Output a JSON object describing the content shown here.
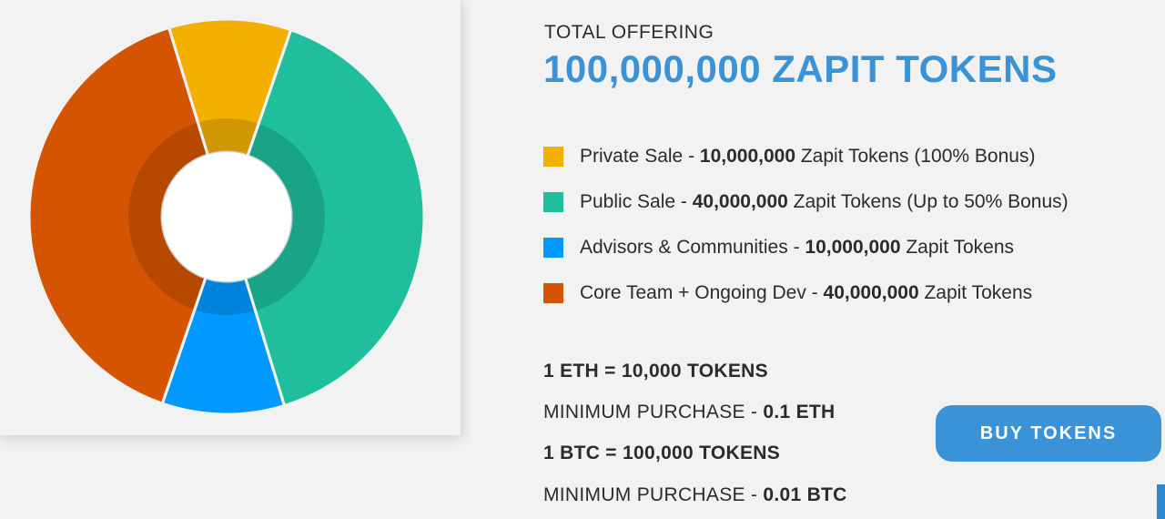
{
  "offering": {
    "label": "TOTAL OFFERING",
    "value": "100,000,000 ZAPIT TOKENS"
  },
  "legend": [
    {
      "name": "Private Sale",
      "sep": " - ",
      "amount": "10,000,000",
      "suffix": " Zapit Tokens (100% Bonus)",
      "color": "#f4b000"
    },
    {
      "name": "Public Sale",
      "sep": " - ",
      "amount": "40,000,000",
      "suffix": " Zapit Tokens (Up to 50% Bonus)",
      "color": "#1fbf9e"
    },
    {
      "name": "Advisors & Communities",
      "sep": " - ",
      "amount": "10,000,000",
      "suffix": " Zapit Tokens",
      "color": "#0099ff"
    },
    {
      "name": "Core Team + Ongoing Dev",
      "sep": " - ",
      "amount": "40,000,000",
      "suffix": " Zapit Tokens",
      "color": "#d55400"
    }
  ],
  "rates": [
    {
      "text": "",
      "bold": "1 ETH = 10,000 TOKENS"
    },
    {
      "text": "MINIMUM PURCHASE - ",
      "bold": "0.1 ETH"
    },
    {
      "text": "",
      "bold": "1 BTC = 100,000 TOKENS"
    },
    {
      "text": "MINIMUM PURCHASE - ",
      "bold": "0.01 BTC"
    }
  ],
  "buy_button": {
    "label": "BUY TOKENS"
  },
  "chart_data": {
    "type": "pie",
    "variant": "donut",
    "categories": [
      "Private Sale",
      "Public Sale",
      "Advisors & Communities",
      "Core Team + Ongoing Dev"
    ],
    "values": [
      10000000,
      40000000,
      10000000,
      40000000
    ],
    "colors": [
      "#f4b000",
      "#1fbf9e",
      "#0099ff",
      "#d55400"
    ],
    "title": "",
    "legend": "right"
  }
}
